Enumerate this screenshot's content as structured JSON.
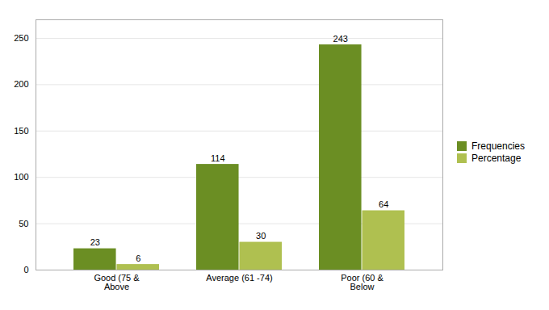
{
  "chart_data": {
    "type": "bar",
    "categories": [
      "Good (75 &\nAbove",
      "Average (61 -74)",
      "Poor (60 &\nBelow"
    ],
    "series": [
      {
        "name": "Frequencies",
        "color": "#6b8e23",
        "values": [
          23,
          114,
          243
        ]
      },
      {
        "name": "Percentage",
        "color": "#afc050",
        "values": [
          6,
          30,
          64
        ]
      }
    ],
    "ylim": [
      0,
      270
    ],
    "yticks": [
      0,
      50,
      100,
      150,
      200,
      250
    ],
    "grid": true,
    "legend": "right",
    "data_labels": true
  }
}
